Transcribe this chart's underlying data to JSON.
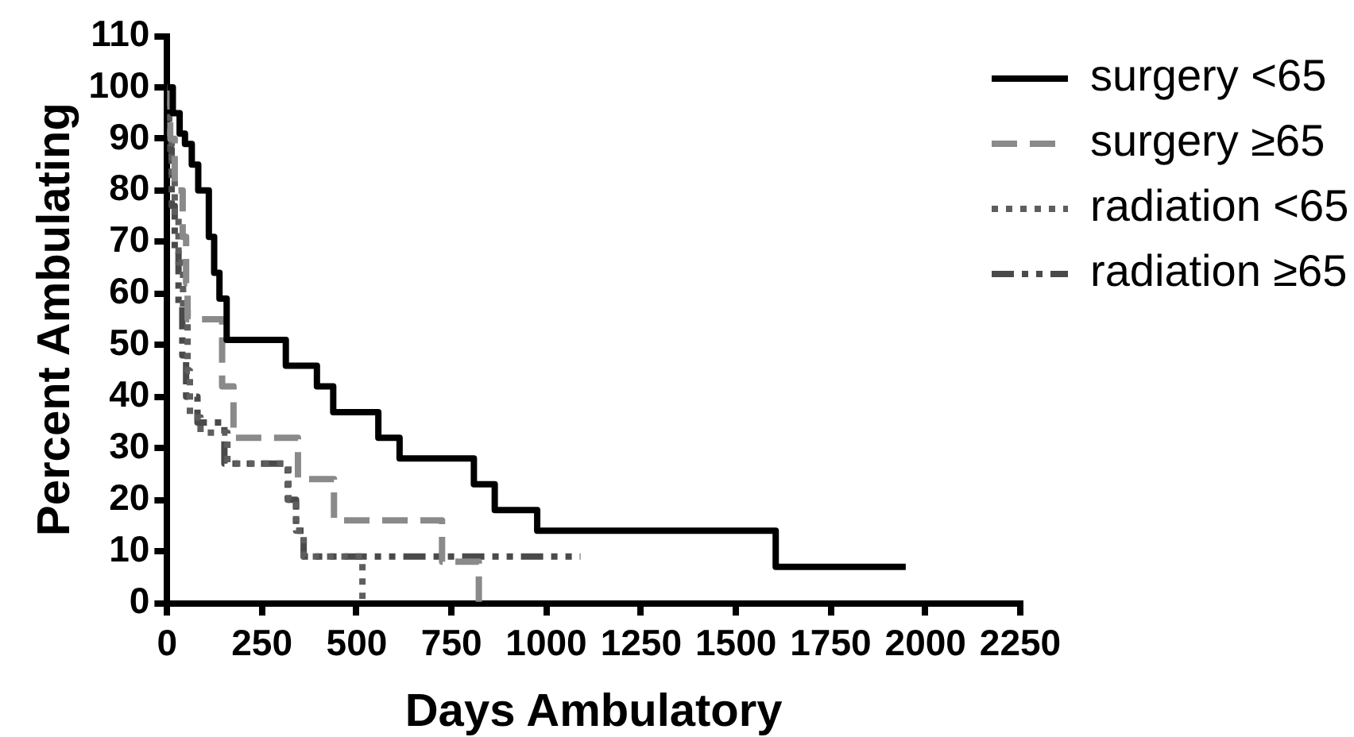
{
  "chart_data": {
    "type": "step",
    "xlabel": "Days Ambulatory",
    "ylabel": "Percent Ambulating",
    "xlim": [
      0,
      2250
    ],
    "xticks": [
      0,
      250,
      500,
      750,
      1000,
      1250,
      1500,
      1750,
      2000,
      2250
    ],
    "ylim": [
      0,
      110
    ],
    "yticks": [
      0,
      10,
      20,
      30,
      40,
      50,
      60,
      70,
      80,
      90,
      100,
      110
    ],
    "grid": false,
    "legend": "top right",
    "series": [
      {
        "name": "surgery <65",
        "color": "#000000",
        "line_style": "solid",
        "x": [
          0,
          15,
          33,
          47,
          65,
          82,
          110,
          124,
          138,
          157,
          313,
          395,
          438,
          557,
          613,
          809,
          864,
          976,
          1605,
          1948
        ],
        "values": [
          100,
          95,
          91,
          89,
          85,
          80,
          71,
          64,
          59,
          51,
          46,
          42,
          37,
          32,
          28,
          23,
          18,
          14,
          7,
          7
        ]
      },
      {
        "name": "surgery ≥65",
        "color": "#8a8a8a",
        "line_style": "dashed",
        "x": [
          0,
          8,
          20,
          41,
          50,
          54,
          145,
          175,
          345,
          440,
          725,
          822
        ],
        "values": [
          100,
          90,
          80,
          71,
          62,
          55,
          42,
          32,
          24,
          16,
          8,
          0
        ]
      },
      {
        "name": "radiation <65",
        "color": "#5e5e5e",
        "line_style": "dotted",
        "x": [
          0,
          5,
          12,
          20,
          30,
          42,
          54,
          60,
          88,
          159,
          320,
          340,
          360,
          515
        ],
        "values": [
          100,
          91,
          82,
          75,
          66,
          57,
          45,
          36,
          33,
          27,
          20,
          14,
          9,
          0
        ]
      },
      {
        "name": "radiation ≥65",
        "color": "#4a4a4a",
        "line_style": "dashdot",
        "x": [
          0,
          5,
          12,
          20,
          30,
          40,
          50,
          80,
          151,
          318,
          340,
          360,
          1090
        ],
        "values": [
          100,
          88,
          77,
          68,
          58,
          48,
          40,
          35,
          27,
          20,
          14,
          9,
          9
        ]
      }
    ]
  }
}
